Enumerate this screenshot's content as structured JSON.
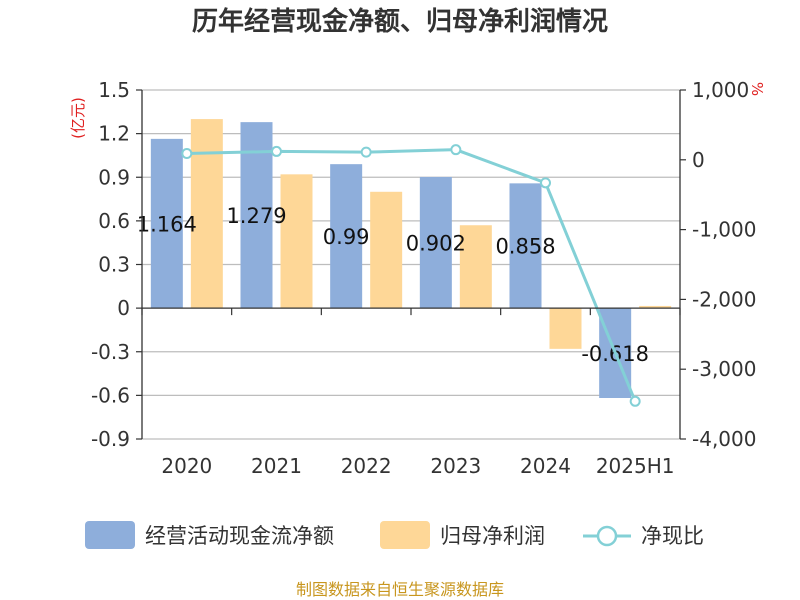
{
  "chart_data": {
    "type": "bar",
    "title": "历年经营现金净额、归母净利润情况",
    "categories": [
      "2020",
      "2021",
      "2022",
      "2023",
      "2024",
      "2025H1"
    ],
    "series": [
      {
        "name": "经营活动现金流净额",
        "kind": "bar",
        "axis": "left",
        "color": "#8eaedb",
        "values": [
          1.164,
          1.279,
          0.99,
          0.902,
          0.858,
          -0.618
        ]
      },
      {
        "name": "归母净利润",
        "kind": "bar",
        "axis": "left",
        "color": "#fed797",
        "values": [
          1.3,
          0.92,
          0.8,
          0.57,
          -0.28,
          0.015
        ]
      },
      {
        "name": "净现比",
        "kind": "line",
        "axis": "right",
        "color": "#83d0d6",
        "values": [
          90,
          120,
          110,
          145,
          -330,
          -3460
        ]
      }
    ],
    "data_labels_series": "经营活动现金流净额",
    "data_labels": [
      "1.164",
      "1.279",
      "0.99",
      "0.902",
      "0.858",
      "-0.618"
    ],
    "left_axis": {
      "unit_label": "(亿元)",
      "min": -0.9,
      "max": 1.5,
      "ticks": [
        "1.5",
        "1.2",
        "0.9",
        "0.6",
        "0.3",
        "0",
        "-0.3",
        "-0.6",
        "-0.9"
      ]
    },
    "right_axis": {
      "unit_label": "%",
      "min": -4000,
      "max": 1000,
      "ticks": [
        "1,000",
        "0",
        "-1,000",
        "-2,000",
        "-3,000",
        "-4,000"
      ]
    },
    "grid": true,
    "legend_position": "bottom"
  },
  "legend": {
    "items": [
      "经营活动现金流净额",
      "归母净利润",
      "净现比"
    ]
  },
  "footer": {
    "source": "制图数据来自恒生聚源数据库"
  },
  "colors": {
    "bar1": "#8eaedb",
    "bar2": "#fed797",
    "line": "#83d0d6",
    "grid": "#bdbdbd",
    "axis": "#333333",
    "unit": "#e02020",
    "source": "#c8961e"
  }
}
